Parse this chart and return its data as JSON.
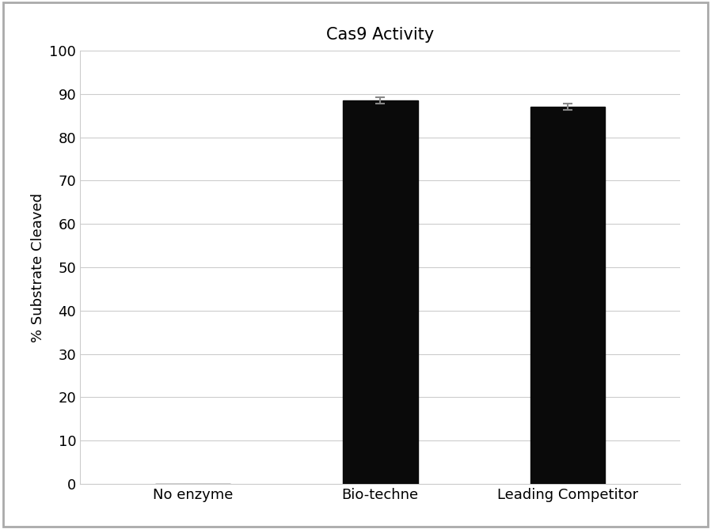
{
  "title": "Cas9 Activity",
  "categories": [
    "No enzyme",
    "Bio-techne",
    "Leading Competitor"
  ],
  "values": [
    0,
    88.5,
    87.0
  ],
  "errors": [
    0,
    0.8,
    0.7
  ],
  "bar_color": "#0a0a0a",
  "bar_width": 0.4,
  "ylabel": "% Substrate Cleaved",
  "ylim": [
    0,
    100
  ],
  "yticks": [
    0,
    10,
    20,
    30,
    40,
    50,
    60,
    70,
    80,
    90,
    100
  ],
  "background_color": "#ffffff",
  "grid_color": "#cccccc",
  "title_fontsize": 15,
  "axis_fontsize": 13,
  "tick_fontsize": 13,
  "error_capsize": 4,
  "error_color": "#888888",
  "error_linewidth": 1.5,
  "border_color": "#aaaaaa"
}
